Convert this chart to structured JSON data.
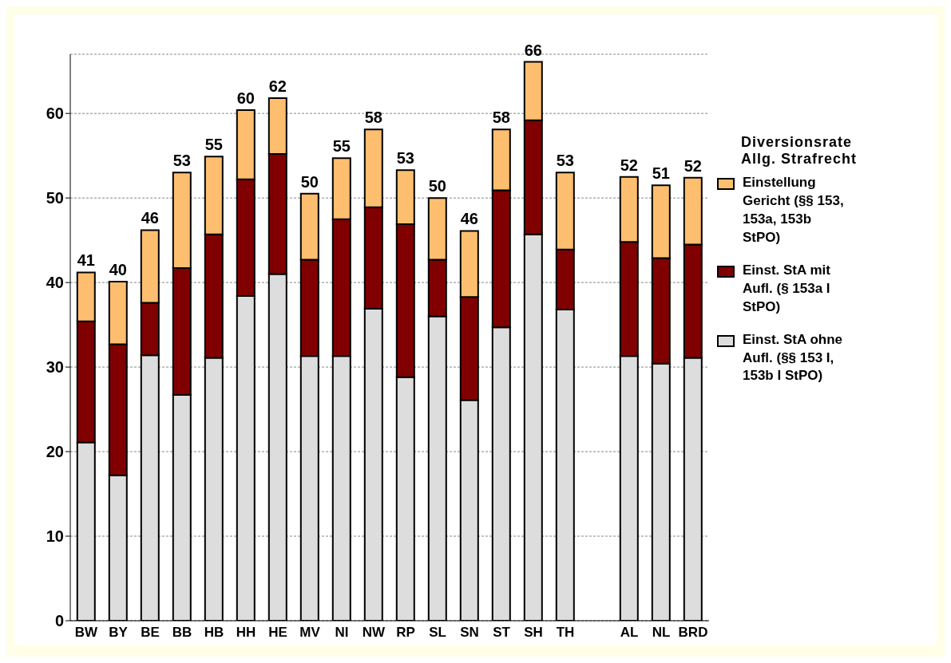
{
  "chart_data": {
    "type": "bar",
    "stacked": true,
    "legend_title": "Diversionsrate Allg. Strafrecht",
    "categories": [
      "BW",
      "BY",
      "BE",
      "BB",
      "HB",
      "HH",
      "HE",
      "MV",
      "NI",
      "NW",
      "RP",
      "SL",
      "SN",
      "ST",
      "SH",
      "TH",
      null,
      "AL",
      "NL",
      "BRD"
    ],
    "series": [
      {
        "name": "Einst. StA ohne Aufl. (§§ 153 I, 153b I StPO)",
        "color": "#dddddd",
        "values": [
          21.1,
          17.2,
          31.4,
          26.7,
          31.1,
          38.4,
          41.0,
          31.3,
          31.3,
          36.9,
          28.8,
          36.0,
          26.1,
          34.7,
          45.7,
          36.8,
          null,
          31.3,
          30.4,
          31.1
        ]
      },
      {
        "name": "Einst. StA mit Aufl. (§ 153a I StPO)",
        "color": "#800000",
        "values": [
          14.3,
          15.5,
          6.2,
          15.0,
          14.6,
          13.8,
          14.2,
          11.4,
          16.2,
          12.0,
          18.1,
          6.7,
          12.2,
          16.2,
          13.5,
          7.1,
          null,
          13.5,
          12.5,
          13.4
        ]
      },
      {
        "name": "Einstellung Gericht (§§ 153, 153a, 153b StPO)",
        "color": "#fdbf6f",
        "values": [
          5.8,
          7.4,
          8.6,
          11.3,
          9.2,
          8.2,
          6.6,
          7.8,
          7.2,
          9.2,
          6.4,
          7.3,
          7.8,
          7.2,
          6.9,
          9.1,
          null,
          7.7,
          8.6,
          7.9
        ]
      }
    ],
    "totals": [
      "41",
      "40",
      "46",
      "53",
      "55",
      "60",
      "62",
      "50",
      "55",
      "58",
      "53",
      "50",
      "46",
      "58",
      "66",
      "53",
      null,
      "52",
      "51",
      "52"
    ],
    "ylim": [
      0,
      67
    ],
    "yticks": [
      0,
      10,
      20,
      30,
      40,
      50,
      60
    ],
    "grid": "y",
    "legend": "right"
  }
}
